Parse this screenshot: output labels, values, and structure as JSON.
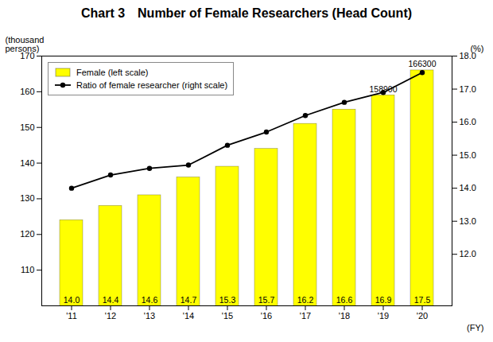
{
  "chart_data": {
    "type": "bar",
    "title": "Chart 3　Number of Female Researchers (Head Count)",
    "categories": [
      "'11",
      "'12",
      "'13",
      "'14",
      "'15",
      "'16",
      "'17",
      "'18",
      "'19",
      "'20"
    ],
    "series": [
      {
        "name": "Female (left scale)",
        "type": "bar",
        "color": "#FFFF00",
        "values": [
          124,
          128,
          131,
          136,
          139,
          144,
          151,
          155,
          159,
          166
        ]
      },
      {
        "name": "Ratio of female researcher (right scale)",
        "type": "line",
        "color": "#000000",
        "marker": "circle",
        "axis": "y2",
        "values": [
          14.0,
          14.4,
          14.6,
          14.7,
          15.3,
          15.7,
          16.2,
          16.6,
          16.9,
          17.5
        ],
        "value_labels": [
          "14.0",
          "14.4",
          "14.6",
          "14.7",
          "15.3",
          "15.7",
          "16.2",
          "16.6",
          "16.9",
          "17.5"
        ]
      }
    ],
    "data_labels": true,
    "xlabel": "(FY)",
    "ylabel": "(thousand\npersons)",
    "y2label": "(%)",
    "ylim": [
      100,
      170
    ],
    "yticks": [
      110,
      120,
      130,
      140,
      150,
      160,
      170
    ],
    "y2lim": [
      10.44,
      18.0
    ],
    "y2ticks": [
      {
        "value": 12.0,
        "label": "12.0"
      },
      {
        "value": 13.0,
        "label": "13.0"
      },
      {
        "value": 14.0,
        "label": "14.0"
      },
      {
        "value": 15.0,
        "label": "15.0"
      },
      {
        "value": 16.0,
        "label": "16.0"
      },
      {
        "value": 17.0,
        "label": "17.0"
      },
      {
        "value": 18.0,
        "label": "18.0"
      }
    ],
    "legend": "top-left",
    "annotations": [
      {
        "text": "158900",
        "x": "'19",
        "y": 159
      },
      {
        "text": "166300",
        "x": "'20",
        "y": 166
      }
    ]
  }
}
